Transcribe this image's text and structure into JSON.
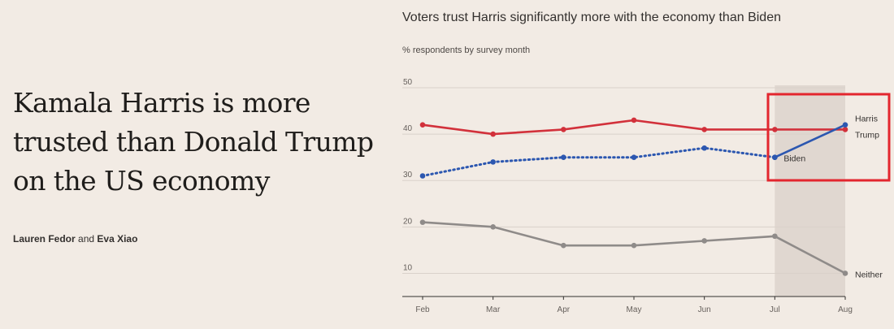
{
  "headline": "Kamala Harris is more trusted than Donald Trump on the US economy",
  "byline": {
    "author1": "Lauren Fedor",
    "joiner": "and",
    "author2": "Eva Xiao"
  },
  "colors": {
    "background": "#f2ebe4",
    "trump": "#d2313b",
    "harris_biden": "#2c57b0",
    "neither": "#8f8b89",
    "highlight_band": "#e0d7d0",
    "annotation_box": "#e3262e"
  },
  "chart_data": {
    "type": "line",
    "title": "Voters trust Harris significantly more with the economy than Biden",
    "subtitle": "% respondents by survey month",
    "categories": [
      "Feb",
      "Mar",
      "Apr",
      "May",
      "Jun",
      "Jul",
      "Aug"
    ],
    "ylim": [
      5,
      50
    ],
    "yticks": [
      10,
      20,
      30,
      40,
      50
    ],
    "highlight_range": [
      "Jul",
      "Aug"
    ],
    "series": [
      {
        "name": "Trump",
        "label": "Trump",
        "color": "#d2313b",
        "style": "solid",
        "values": [
          42,
          40,
          41,
          43,
          41,
          41,
          41
        ]
      },
      {
        "name": "Biden",
        "label": "Biden",
        "color": "#2c57b0",
        "style": "dotted",
        "values": [
          31,
          34,
          35,
          35,
          37,
          35,
          null
        ]
      },
      {
        "name": "Harris",
        "label": "Harris",
        "color": "#2c57b0",
        "style": "solid",
        "values": [
          null,
          null,
          null,
          null,
          null,
          35,
          42
        ]
      },
      {
        "name": "Neither",
        "label": "Neither",
        "color": "#8f8b89",
        "style": "solid",
        "values": [
          21,
          20,
          16,
          16,
          17,
          18,
          10
        ]
      }
    ]
  }
}
